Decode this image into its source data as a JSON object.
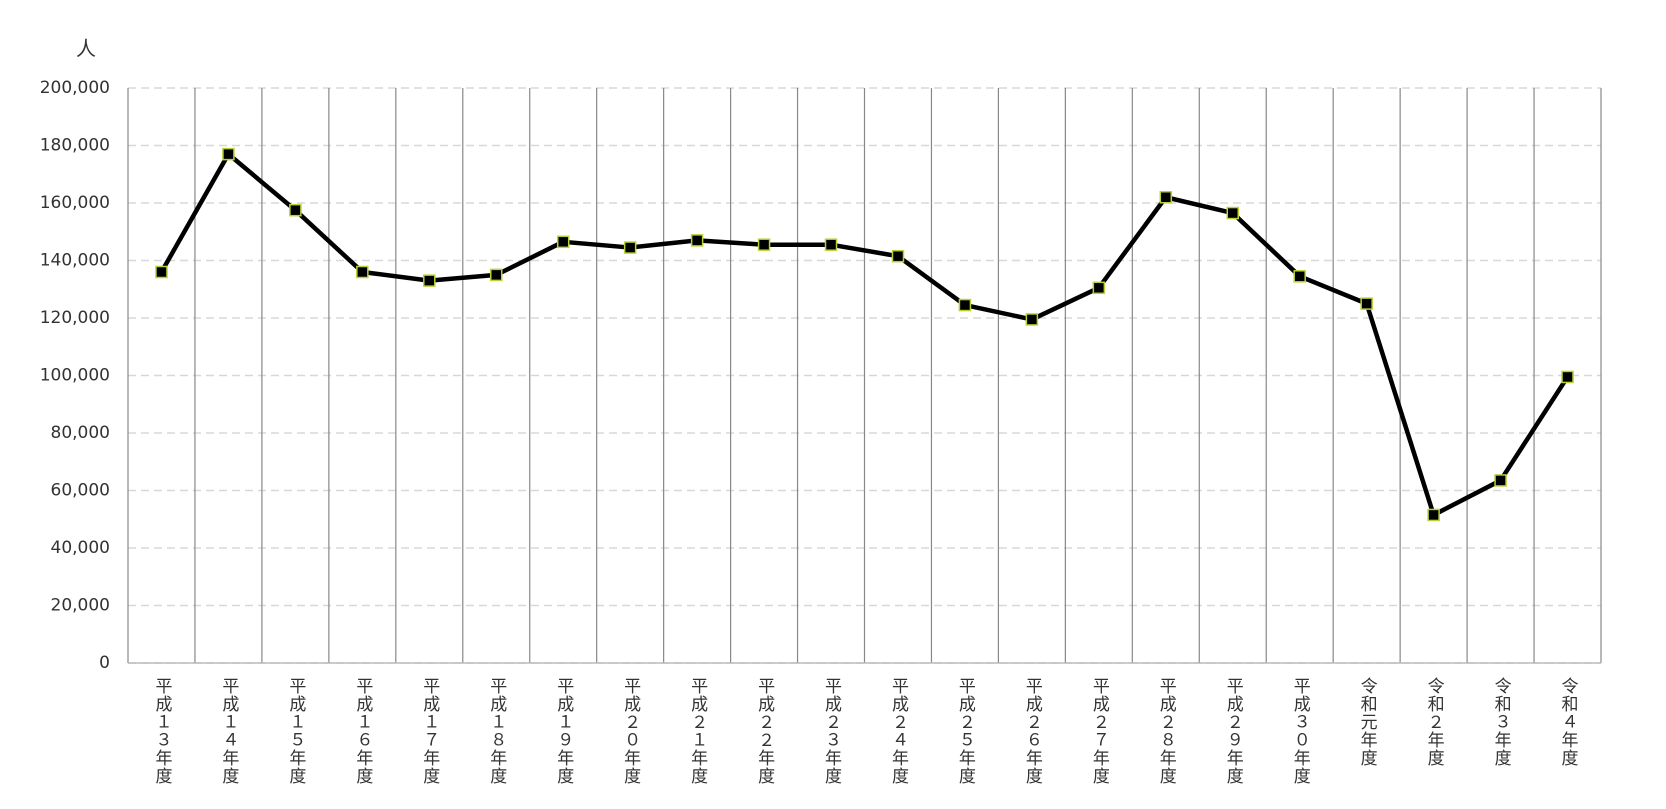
{
  "chart_data": {
    "type": "line",
    "y_label": "人",
    "categories": [
      "平成１３年度",
      "平成１４年度",
      "平成１５年度",
      "平成１６年度",
      "平成１７年度",
      "平成１８年度",
      "平成１９年度",
      "平成２０年度",
      "平成２１年度",
      "平成２２年度",
      "平成２３年度",
      "平成２４年度",
      "平成２５年度",
      "平成２６年度",
      "平成２７年度",
      "平成２８年度",
      "平成２９年度",
      "平成３０年度",
      "令和元年度",
      "令和２年度",
      "令和３年度",
      "令和４年度"
    ],
    "series": [
      {
        "color": "#000000",
        "marker_color": "#000000",
        "marker_edge": "#b5d334",
        "values": [
          136000,
          177000,
          157500,
          136000,
          133000,
          135000,
          146500,
          144500,
          147000,
          145500,
          145500,
          141500,
          124500,
          119500,
          130500,
          162000,
          156500,
          134500,
          125000,
          51500,
          63500,
          99500
        ]
      }
    ],
    "ylim": [
      0,
      200000
    ],
    "yticks": [
      0,
      {
        "value": 20000,
        "label": "20,000"
      },
      {
        "value": 40000,
        "label": "40,000"
      },
      {
        "value": 60000,
        "label": "60,000"
      },
      {
        "value": 80000,
        "label": "80,000"
      },
      {
        "value": 100000,
        "label": "100,000"
      },
      {
        "value": 120000,
        "label": "120,000"
      },
      {
        "value": 140000,
        "label": "140,000"
      },
      {
        "value": 160000,
        "label": "160,000"
      },
      {
        "value": 180000,
        "label": "180,000"
      },
      {
        "value": 200000,
        "label": "200,000"
      }
    ],
    "grid": true
  }
}
